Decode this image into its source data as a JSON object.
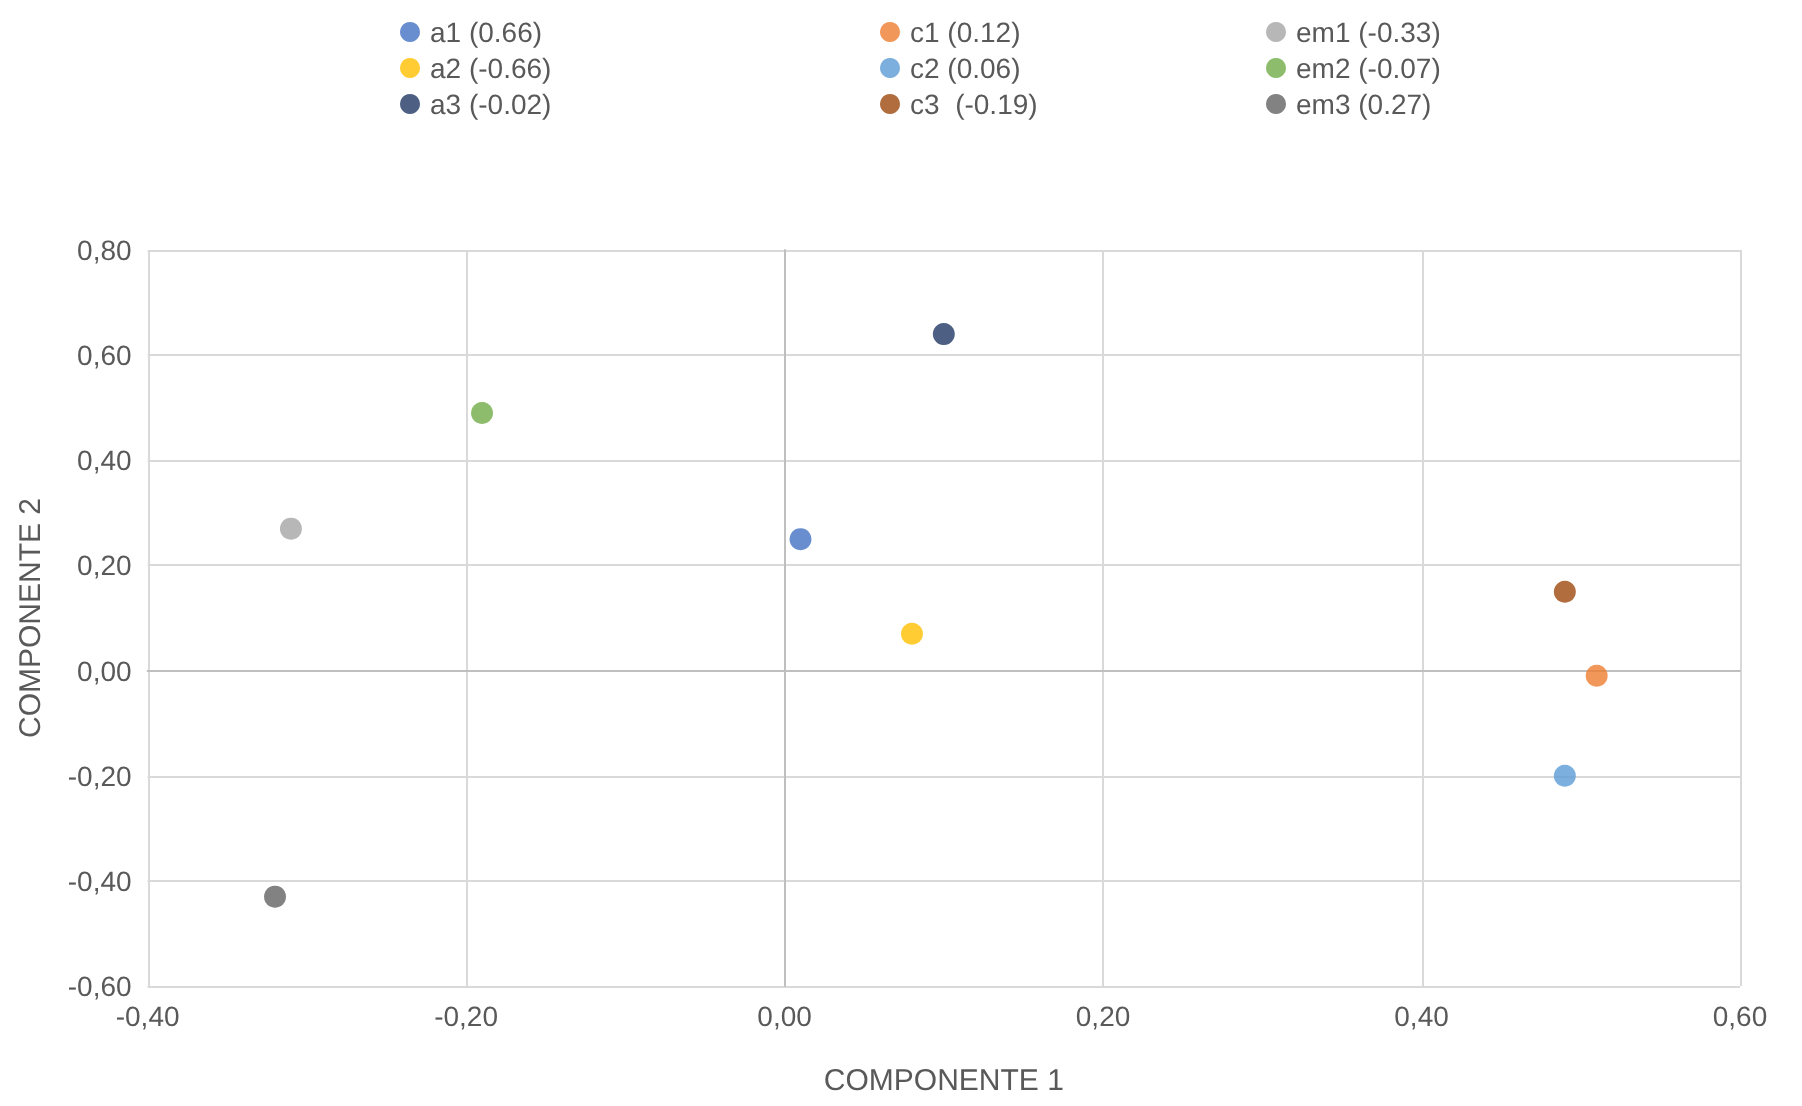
{
  "chart_data": {
    "type": "scatter",
    "xlabel": "COMPONENTE 1",
    "ylabel": "COMPONENTE 2",
    "xlim": [
      -0.4,
      0.6
    ],
    "ylim": [
      -0.6,
      0.8
    ],
    "xticks": [
      {
        "value": -0.4,
        "label": "-0,40"
      },
      {
        "value": -0.2,
        "label": "-0,20"
      },
      {
        "value": 0,
        "label": "0,00"
      },
      {
        "value": 0.2,
        "label": "0,20"
      },
      {
        "value": 0.4,
        "label": "0,40"
      },
      {
        "value": 0.6,
        "label": "0,60"
      }
    ],
    "yticks": [
      {
        "value": -0.6,
        "label": "-0,60"
      },
      {
        "value": -0.4,
        "label": "-0,40"
      },
      {
        "value": -0.2,
        "label": "-0,20"
      },
      {
        "value": 0,
        "label": "0,00"
      },
      {
        "value": 0.2,
        "label": "0,20"
      },
      {
        "value": 0.4,
        "label": "0,40"
      },
      {
        "value": 0.6,
        "label": "0,60"
      },
      {
        "value": 0.8,
        "label": "0,80"
      }
    ],
    "grid": true,
    "legend": "top",
    "marker": "circle",
    "series": [
      {
        "name": "a1 (0.66)",
        "color": "#4472c4",
        "x": [
          0.01
        ],
        "values": [
          0.25
        ]
      },
      {
        "name": "a2 (-0.66)",
        "color": "#ffc000",
        "x": [
          0.08
        ],
        "values": [
          0.07
        ]
      },
      {
        "name": "a3 (-0.02)",
        "color": "#203864",
        "x": [
          0.1
        ],
        "values": [
          0.64
        ]
      },
      {
        "name": "c1 (0.12)",
        "color": "#ed7d31",
        "x": [
          0.51
        ],
        "values": [
          -0.01
        ]
      },
      {
        "name": "c2 (0.06)",
        "color": "#5b9bd5",
        "x": [
          0.49
        ],
        "values": [
          -0.2
        ]
      },
      {
        "name": "c3  (-0.19)",
        "color": "#9e480e",
        "x": [
          0.49
        ],
        "values": [
          0.15
        ]
      },
      {
        "name": "em1 (-0.33)",
        "color": "#a5a5a5",
        "x": [
          -0.31
        ],
        "values": [
          0.27
        ]
      },
      {
        "name": "em2 (-0.07)",
        "color": "#70ad47",
        "x": [
          -0.19
        ],
        "values": [
          0.49
        ]
      },
      {
        "name": "em3 (0.27)",
        "color": "#636363",
        "x": [
          -0.32
        ],
        "values": [
          -0.43
        ]
      }
    ]
  }
}
